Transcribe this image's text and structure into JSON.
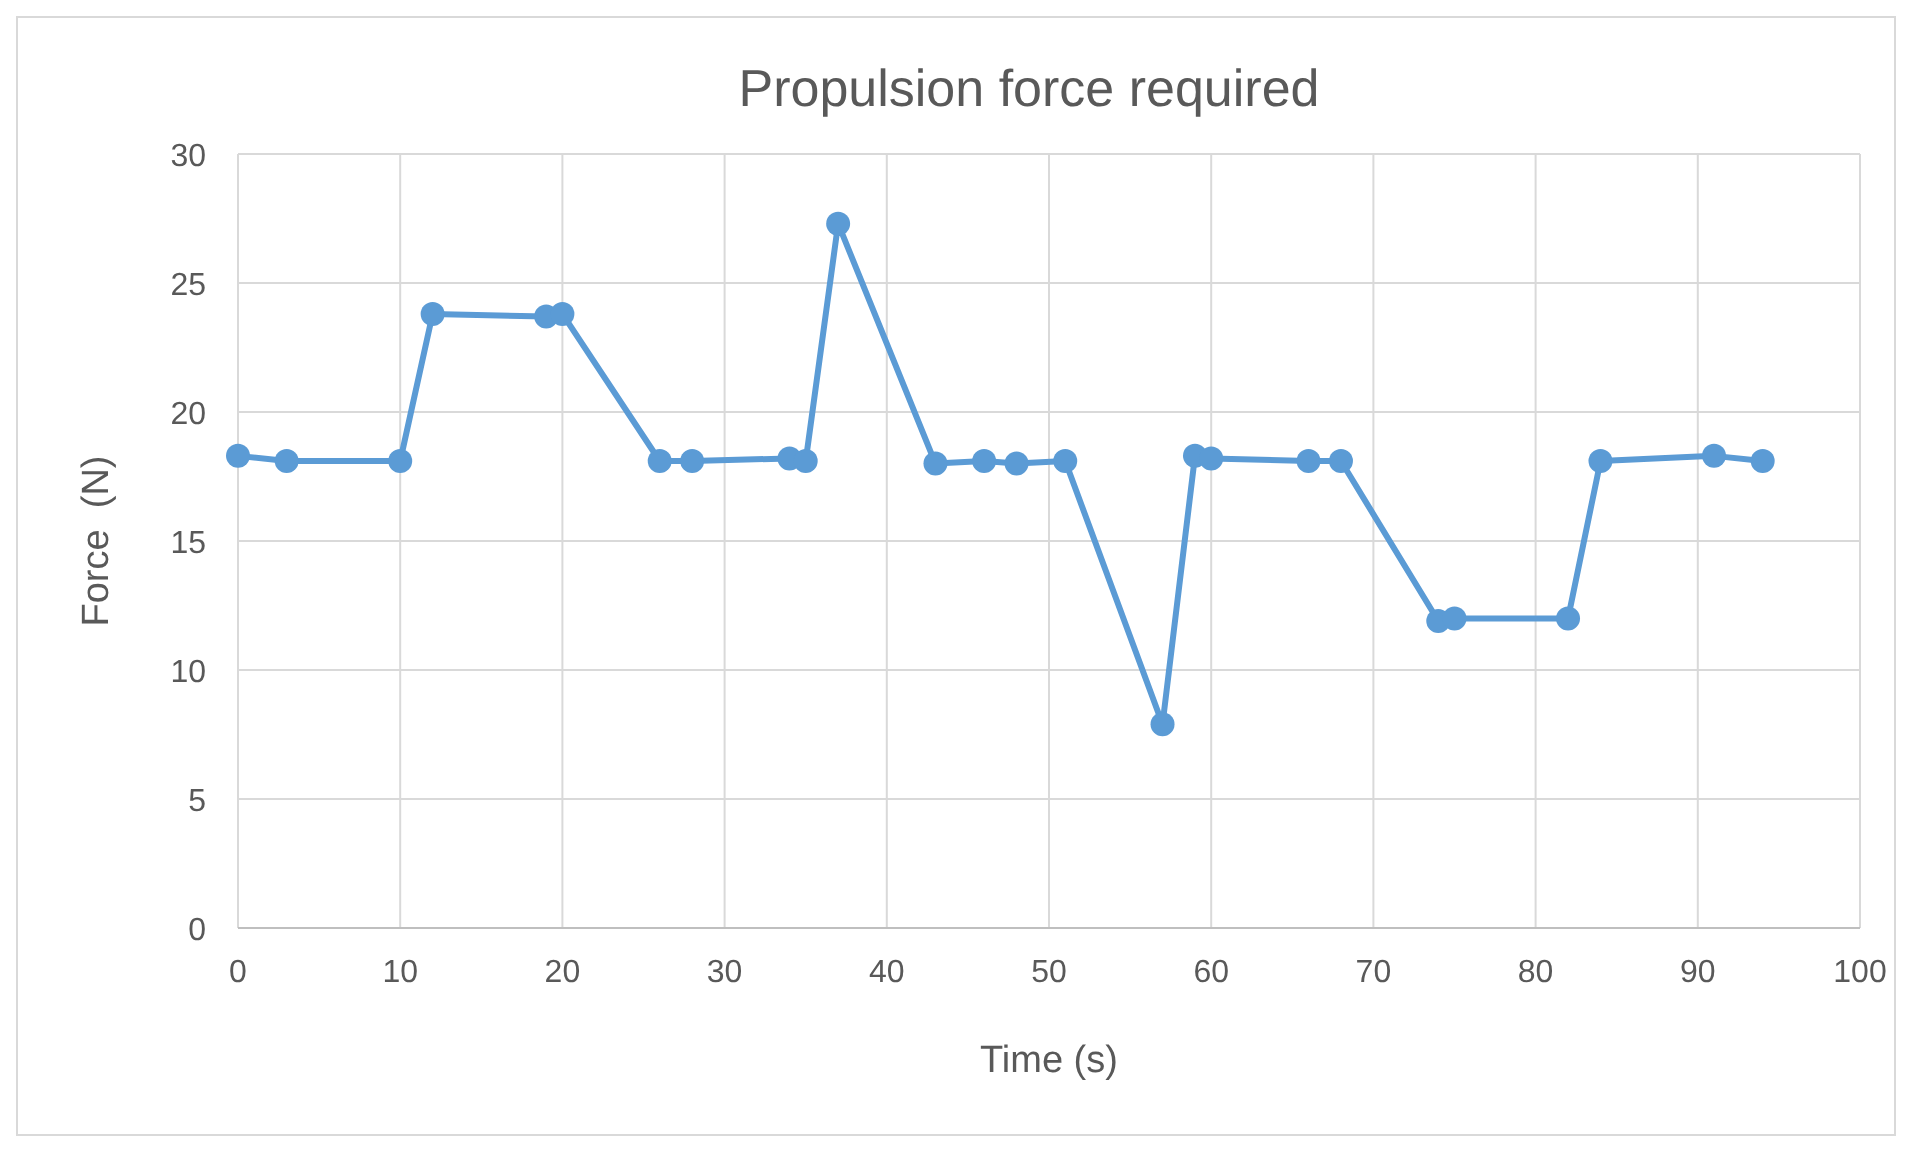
{
  "chart_data": {
    "type": "line",
    "title": "Propulsion force required",
    "xlabel": "Time (s)",
    "ylabel": "Force  (N)",
    "x": [
      0,
      3,
      10,
      12,
      19,
      20,
      26,
      28,
      34,
      35,
      37,
      43,
      46,
      48,
      51,
      57,
      59,
      60,
      66,
      68,
      74,
      75,
      82,
      84,
      91,
      94
    ],
    "series": [
      {
        "color": "#5b9bd5",
        "values": [
          18.3,
          18.1,
          18.1,
          23.8,
          23.7,
          23.8,
          18.1,
          18.1,
          18.2,
          18.1,
          27.3,
          18.0,
          18.1,
          18.0,
          18.1,
          7.9,
          18.3,
          18.2,
          18.1,
          18.1,
          11.9,
          12.0,
          12.0,
          18.1,
          18.3,
          18.1
        ]
      }
    ],
    "xlim": [
      0,
      100
    ],
    "xticks": [
      0,
      10,
      20,
      30,
      40,
      50,
      60,
      70,
      80,
      90,
      100
    ],
    "ylim": [
      0,
      30
    ],
    "yticks": [
      0,
      5,
      10,
      15,
      20,
      25,
      30
    ],
    "grid": true,
    "marker": "circle",
    "line_style": "solid"
  }
}
